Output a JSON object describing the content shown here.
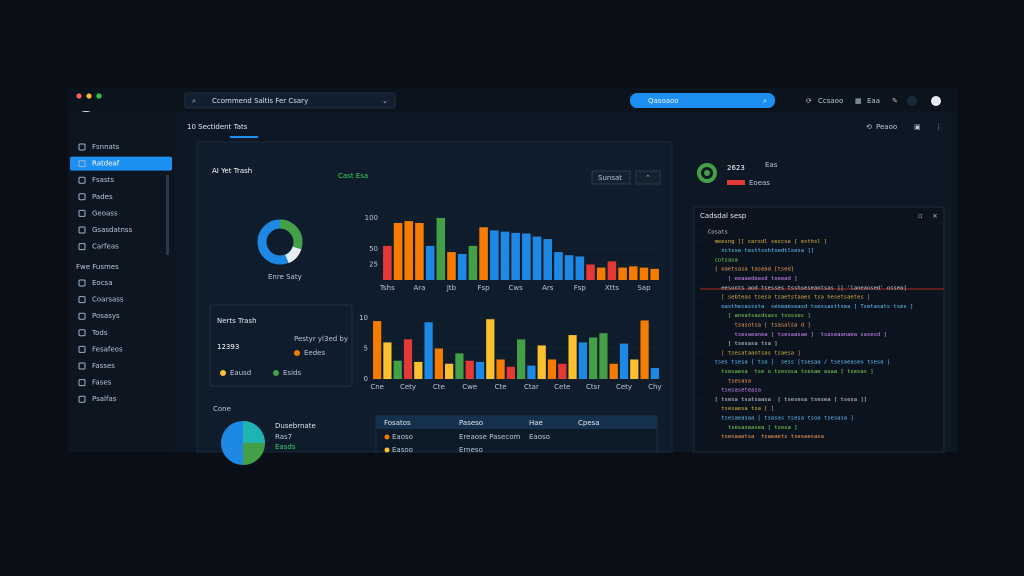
{
  "topbar": {
    "search": "Ccommend Saltis Fer Csary",
    "search_right": "Qasoaoo",
    "tools": [
      "Ccsaoo",
      "Eaa"
    ]
  },
  "header": {
    "title": "10 Sectident Tats",
    "action": "Peaoo"
  },
  "sidebar": {
    "items": [
      "Fsnnats",
      "Ratdeaf",
      "Fsasts",
      "Pades",
      "Geoass",
      "Gsasdatnss",
      "Carfeas"
    ],
    "section": "Fwe Fusmes",
    "items2": [
      "Eocsa",
      "Coarsass",
      "Posasys",
      "Tods",
      "Fesafeos",
      "Fasses",
      "Fases",
      "Psalfas"
    ]
  },
  "main": {
    "title": "AI Yet Trash",
    "badge": "Cast Esa",
    "button": "Sunsat",
    "donut_label": "Enre Saty"
  },
  "stats": {
    "title": "Nerts Trash",
    "value": "12393",
    "note": "Pestyr yl3ed by",
    "tag": "Eedes",
    "legend": [
      "Eausd",
      "Esids"
    ]
  },
  "bottom": {
    "label": "Cone",
    "lines": [
      "Dusebrnate",
      "Ras7",
      "Easds"
    ]
  },
  "table": {
    "header": [
      "Fosatos",
      "Paseso",
      "Hae",
      "Cpesa"
    ],
    "rows": [
      [
        "Eaoso",
        "Ereaose Pasecom",
        "Eaoso"
      ],
      [
        "Easoo",
        "Erneso"
      ]
    ]
  },
  "right": {
    "value": "2623",
    "sub": "Eas",
    "tag": "Eoeas",
    "code_title": "Cadsdal sesp",
    "code": [
      "Cosats",
      "  meesng [[ carsdl sescse [ esthsl ]",
      "    sctsse testtsohtsedtlsesa ]]",
      "  cotsasa",
      "  [ oaetsasa tasead [tsed]",
      "      [ eeaaedeasd tseead ]",
      "    eesonts aod tsesses tsshseseantsas ][ 'laneaosed' ossea]",
      "    [ sebteas tsesa tsaetstaaes tsa hesetsaetes ]",
      "    oasthecasssta  seseaeseasd tsessasttsea [ Tsetasats tses ]",
      "      [ ansatsasdsass tsossec ]",
      "        tsasotsa [ tsasalsa d ]",
      "        tsesaeanea [ tsesaasae ]  tsaseaanaea sasesd ]",
      "      [ tsesasa tsa ]",
      "    [ tsesataantsas tsaesa ]",
      "  tses tsesa [ tsa ]  sess [tsesaa / tsesaeaseo tsesa ]",
      "    tsesaesa  tse o tsesosa tsesae asaa [ tsesas ]",
      "      tsesasa",
      "    tsesaseteasa",
      "  [ tsesa tsatsaasa  [ tsesesa tsesea [ tsesa ]]",
      "    tsesaesa tsa [ ]",
      "    tsesaeasaa [ tsasas tsesa tsoa tsesasa ]",
      "      tsesaseasea [ tsesa ]",
      "    tsesaaetsa  tsaeaets tsesaesasa"
    ]
  },
  "chart_data": [
    {
      "type": "bar",
      "ylim": [
        0,
        100
      ],
      "yticks": [
        25,
        50,
        100
      ],
      "categories": [
        "Tshs",
        null,
        null,
        "Ara",
        null,
        null,
        "Jtb",
        null,
        null,
        "Fsp",
        null,
        null,
        "Cws",
        null,
        null,
        "Ars",
        null,
        null,
        "Fsp",
        null,
        null,
        "Xtts",
        null,
        null,
        "Sap",
        null
      ],
      "values": [
        55,
        92,
        95,
        92,
        55,
        100,
        45,
        42,
        55,
        85,
        80,
        78,
        76,
        75,
        70,
        66,
        45,
        40,
        38,
        25,
        20,
        30,
        20,
        22,
        20,
        18
      ],
      "colors": [
        "#e53935",
        "#f57c00",
        "#f57c00",
        "#f57c00",
        "#1e88e5",
        "#43a047",
        "#f57c00",
        "#1e88e5",
        "#43a047",
        "#f57c00",
        "#1e88e5",
        "#1e88e5",
        "#1e88e5",
        "#1e88e5",
        "#1e88e5",
        "#1e88e5",
        "#1e88e5",
        "#1e88e5",
        "#1e88e5",
        "#e53935",
        "#f57c00",
        "#e53935",
        "#f57c00",
        "#f57c00",
        "#f57c00",
        "#f57c00"
      ]
    },
    {
      "type": "bar",
      "ylim": [
        0,
        10
      ],
      "yticks": [
        0,
        5,
        10
      ],
      "categories": [
        "Cne",
        null,
        null,
        "Cety",
        null,
        null,
        "Cte",
        null,
        null,
        "Cwe",
        null,
        null,
        "Cte",
        null,
        null,
        "Ctar",
        null,
        null,
        "Cete",
        null,
        null,
        "Ctsr",
        null,
        null,
        "Cety",
        null,
        null,
        "Chy"
      ],
      "values": [
        9.5,
        6,
        3,
        6.5,
        2.8,
        9.3,
        5,
        2.5,
        4.2,
        3,
        2.8,
        9.8,
        3.2,
        2,
        6.5,
        2.2,
        5.5,
        3.2,
        2.5,
        7.2,
        6,
        6.8,
        7.5,
        2.5,
        5.8,
        3.2,
        9.6,
        1.8
      ],
      "colors": [
        "#f57c00",
        "#fbc02d",
        "#43a047",
        "#e53935",
        "#fbc02d",
        "#1e88e5",
        "#f57c00",
        "#fbc02d",
        "#43a047",
        "#e53935",
        "#1e88e5",
        "#fbc02d",
        "#f57c00",
        "#e53935",
        "#43a047",
        "#1e88e5",
        "#fbc02d",
        "#f57c00",
        "#e53935",
        "#fbc02d",
        "#1e88e5",
        "#43a047",
        "#43a047",
        "#f57c00",
        "#1e88e5",
        "#fbc02d",
        "#f57c00",
        "#1e88e5"
      ]
    }
  ]
}
